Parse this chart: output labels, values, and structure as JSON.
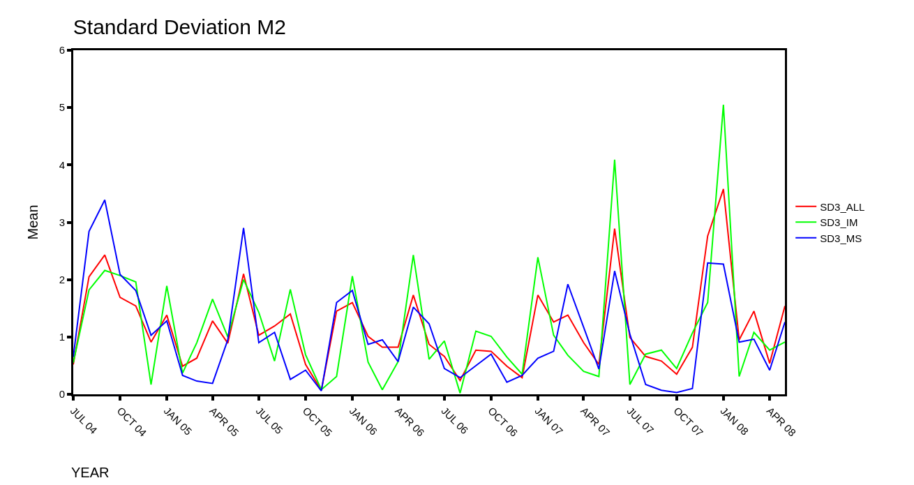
{
  "chart_data": {
    "type": "line",
    "title": "Standard Deviation M2",
    "xlabel": "YEAR",
    "ylabel": "Mean",
    "x": [
      "2004-07",
      "2004-08",
      "2004-09",
      "2004-10",
      "2004-11",
      "2004-12",
      "2005-01",
      "2005-02",
      "2005-03",
      "2005-04",
      "2005-05",
      "2005-06",
      "2005-07",
      "2005-08",
      "2005-09",
      "2005-10",
      "2005-11",
      "2005-12",
      "2006-01",
      "2006-02",
      "2006-03",
      "2006-04",
      "2006-05",
      "2006-06",
      "2006-07",
      "2006-08",
      "2006-09",
      "2006-10",
      "2006-11",
      "2006-12",
      "2007-01",
      "2007-02",
      "2007-03",
      "2007-04",
      "2007-05",
      "2007-06",
      "2007-07",
      "2007-08",
      "2007-09",
      "2007-10",
      "2007-11",
      "2007-12",
      "2008-01",
      "2008-02",
      "2008-03",
      "2008-04",
      "2008-05"
    ],
    "series": [
      {
        "name": "SD3_ALL",
        "color": "#ff0000",
        "values": [
          0.52,
          2.05,
          2.43,
          1.69,
          1.54,
          0.91,
          1.38,
          0.49,
          0.63,
          1.28,
          0.89,
          2.1,
          1.03,
          1.19,
          1.4,
          0.52,
          0.07,
          1.45,
          1.6,
          1.01,
          0.82,
          0.82,
          1.73,
          0.87,
          0.66,
          0.24,
          0.77,
          0.75,
          0.49,
          0.29,
          1.73,
          1.26,
          1.38,
          0.9,
          0.52,
          2.89,
          0.99,
          0.66,
          0.58,
          0.35,
          0.82,
          2.76,
          3.58,
          0.95,
          1.45,
          0.54,
          1.54
        ]
      },
      {
        "name": "SD3_IM",
        "color": "#00ff00",
        "values": [
          0.55,
          1.82,
          2.16,
          2.07,
          1.96,
          0.17,
          1.89,
          0.37,
          0.9,
          1.66,
          1.0,
          2.0,
          1.43,
          0.58,
          1.83,
          0.69,
          0.08,
          0.31,
          2.06,
          0.56,
          0.08,
          0.57,
          2.43,
          0.61,
          0.93,
          0.02,
          1.1,
          1.01,
          0.65,
          0.35,
          2.39,
          1.03,
          0.68,
          0.4,
          0.31,
          4.09,
          0.17,
          0.7,
          0.77,
          0.45,
          1.07,
          1.6,
          5.05,
          0.31,
          1.08,
          0.77,
          0.91
        ]
      },
      {
        "name": "SD3_MS",
        "color": "#0000ff",
        "values": [
          0.65,
          2.84,
          3.39,
          2.09,
          1.81,
          1.03,
          1.28,
          0.33,
          0.23,
          0.19,
          0.95,
          2.9,
          0.9,
          1.08,
          0.26,
          0.42,
          0.06,
          1.6,
          1.81,
          0.87,
          0.95,
          0.57,
          1.52,
          1.23,
          0.45,
          0.29,
          0.5,
          0.7,
          0.21,
          0.33,
          0.63,
          0.75,
          1.92,
          1.17,
          0.44,
          2.15,
          1.05,
          0.17,
          0.07,
          0.03,
          0.1,
          2.29,
          2.27,
          0.91,
          0.96,
          0.42,
          1.26
        ]
      }
    ],
    "xlim": [
      "2004-07-01",
      "2008-05-01"
    ],
    "xticks": [
      {
        "value": "2004-07",
        "label": "JUL 04"
      },
      {
        "value": "2004-10",
        "label": "OCT 04"
      },
      {
        "value": "2005-01",
        "label": "JAN 05"
      },
      {
        "value": "2005-04",
        "label": "APR 05"
      },
      {
        "value": "2005-07",
        "label": "JUL 05"
      },
      {
        "value": "2005-10",
        "label": "OCT 05"
      },
      {
        "value": "2006-01",
        "label": "JAN 06"
      },
      {
        "value": "2006-04",
        "label": "APR 06"
      },
      {
        "value": "2006-07",
        "label": "JUL 06"
      },
      {
        "value": "2006-10",
        "label": "OCT 06"
      },
      {
        "value": "2007-01",
        "label": "JAN 07"
      },
      {
        "value": "2007-04",
        "label": "APR 07"
      },
      {
        "value": "2007-07",
        "label": "JUL 07"
      },
      {
        "value": "2007-10",
        "label": "OCT 07"
      },
      {
        "value": "2008-01",
        "label": "JAN 08"
      },
      {
        "value": "2008-04",
        "label": "APR 08"
      }
    ],
    "ylim": [
      0,
      6
    ],
    "yticks": [
      0,
      1,
      2,
      3,
      4,
      5,
      6
    ],
    "legend": "right",
    "marker": "none",
    "line_style": "solid"
  }
}
